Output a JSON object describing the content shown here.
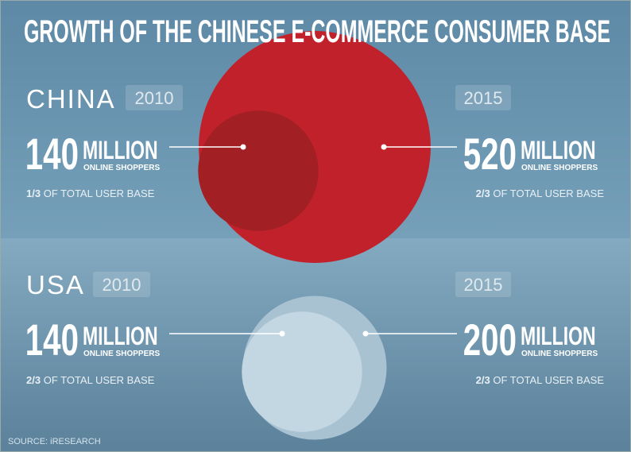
{
  "title": "GROWTH OF THE CHINESE E-COMMERCE CONSUMER BASE",
  "sections": [
    {
      "country": "CHINA",
      "entries": [
        {
          "year": "2010",
          "value": 140,
          "unit": "MILLION",
          "label": "ONLINE SHOPPERS",
          "share": "1/3",
          "share_text": "OF TOTAL USER BASE",
          "color": "#a21f24"
        },
        {
          "year": "2015",
          "value": 520,
          "unit": "MILLION",
          "label": "ONLINE SHOPPERS",
          "share": "2/3",
          "share_text": "OF TOTAL USER BASE",
          "color": "#c1212a"
        }
      ]
    },
    {
      "country": "USA",
      "entries": [
        {
          "year": "2010",
          "value": 140,
          "unit": "MILLION",
          "label": "ONLINE SHOPPERS",
          "share": "2/3",
          "share_text": "OF TOTAL USER BASE",
          "color": "#c3d7e2"
        },
        {
          "year": "2015",
          "value": 200,
          "unit": "MILLION",
          "label": "ONLINE SHOPPERS",
          "share": "2/3",
          "share_text": "OF TOTAL USER BASE",
          "color": "#a8c2d2"
        }
      ]
    }
  ],
  "source": "SOURCE: iRESEARCH"
}
